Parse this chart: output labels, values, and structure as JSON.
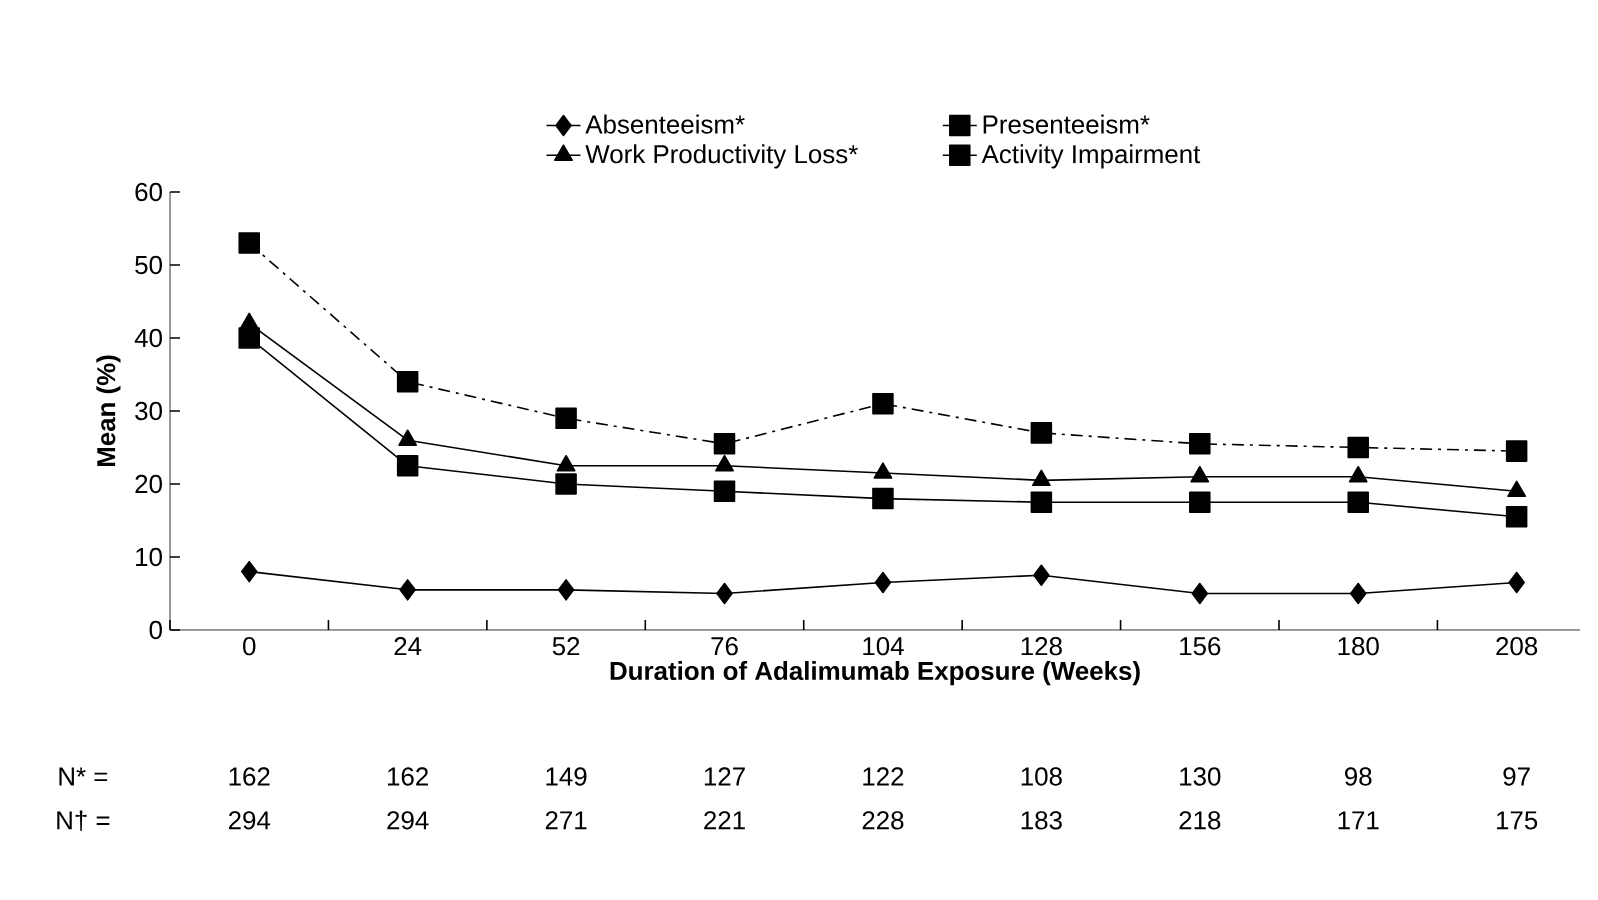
{
  "chart_data": {
    "type": "line",
    "xlabel": "Duration of Adalimumab Exposure (Weeks)",
    "ylabel": "Mean (%)",
    "categories": [
      "0",
      "24",
      "52",
      "76",
      "104",
      "128",
      "156",
      "180",
      "208"
    ],
    "series": [
      {
        "name": "Absenteeism*",
        "color": "#000000",
        "marker": "diamond",
        "line_style": "solid",
        "values": [
          8,
          5.5,
          5.5,
          5,
          6.5,
          7.5,
          5,
          5,
          6.5
        ]
      },
      {
        "name": "Presenteeism*",
        "color": "#000000",
        "marker": "square",
        "line_style": "dashdot",
        "values": [
          53,
          34,
          29,
          25.5,
          31,
          27,
          25.5,
          25,
          24.5
        ]
      },
      {
        "name": "Work Productivity Loss*",
        "color": "#000000",
        "marker": "triangle",
        "line_style": "solid",
        "values": [
          42,
          26,
          22.5,
          22.5,
          21.5,
          20.5,
          21,
          21,
          19
        ]
      },
      {
        "name": "Activity Impairment",
        "color": "#000000",
        "marker": "square",
        "line_style": "solid",
        "values": [
          40,
          22.5,
          20,
          19,
          18,
          17.5,
          17.5,
          17.5,
          15.5
        ]
      }
    ],
    "ylim": [
      0,
      60
    ],
    "yticks": [
      0,
      10,
      20,
      30,
      40,
      50,
      60
    ],
    "legend": "top",
    "grid": false,
    "annotations": [
      "N* =",
      "162",
      "162",
      "149",
      "127",
      "122",
      "108",
      "130",
      "98",
      "97",
      "N† =",
      "294",
      "294",
      "271",
      "221",
      "228",
      "183",
      "218",
      "171",
      "175"
    ]
  }
}
